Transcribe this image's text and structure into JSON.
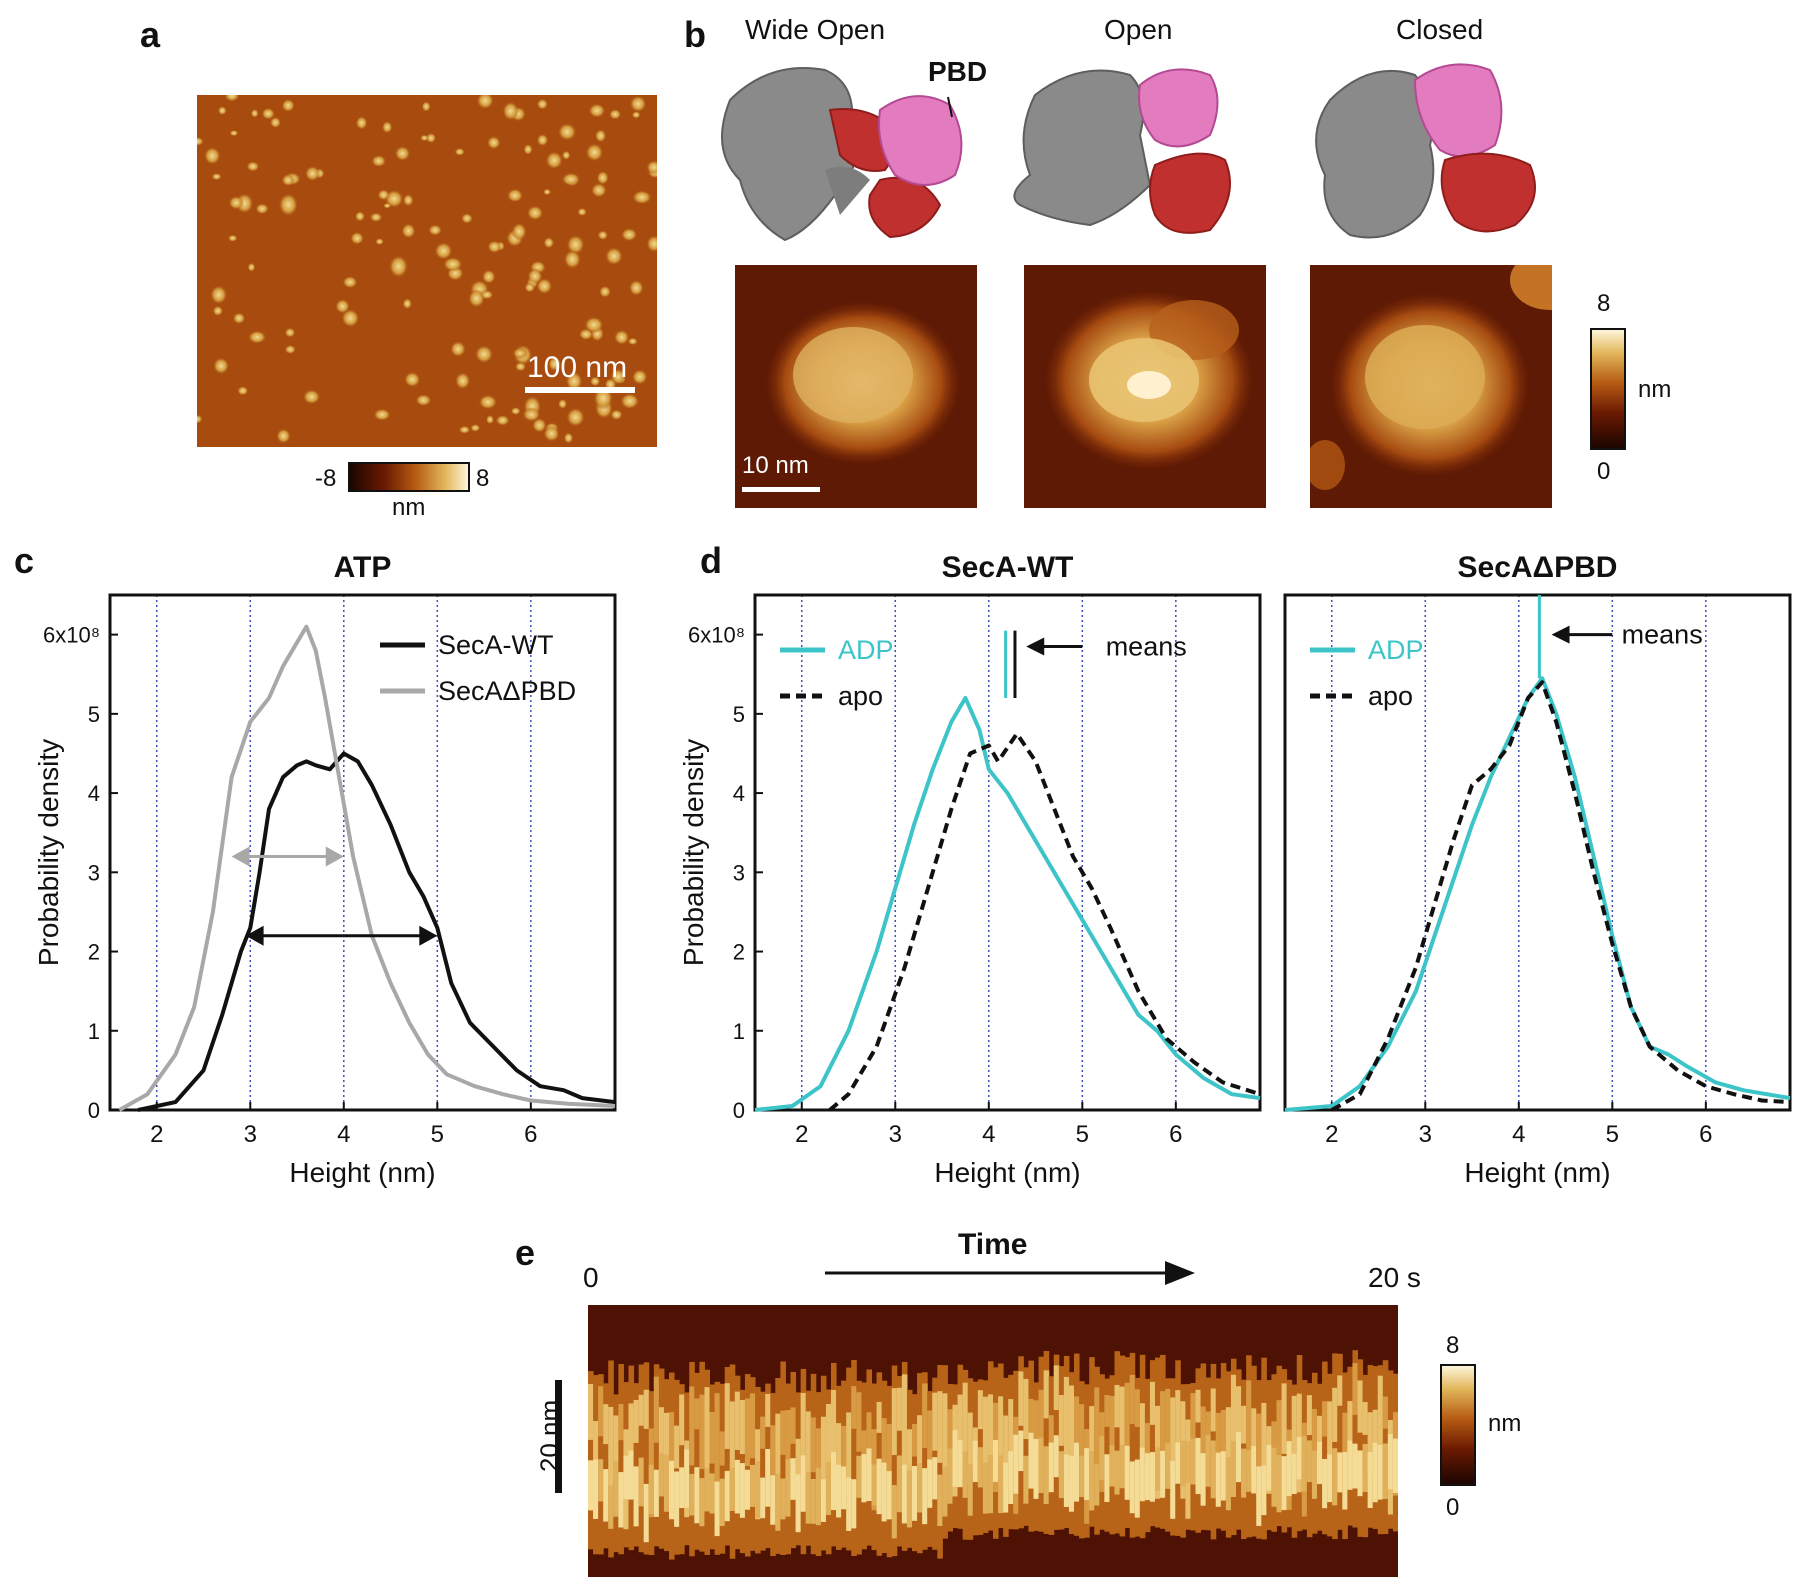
{
  "panels": {
    "a": {
      "label": "a",
      "scale_bar": "100 nm",
      "colorbar": {
        "min": "-8",
        "max": "8",
        "unit": "nm"
      }
    },
    "b": {
      "label": "b",
      "states": [
        "Wide Open",
        "Open",
        "Closed"
      ],
      "pbd_label": "PBD",
      "scale_bar": "10 nm",
      "colorbar": {
        "min": "0",
        "max": "8",
        "unit": "nm"
      }
    },
    "c": {
      "label": "c"
    },
    "d": {
      "label": "d"
    },
    "e": {
      "label": "e",
      "time_label": "Time",
      "t_start": "0",
      "t_end": "20 s",
      "scale_bar": "20 nm",
      "colorbar": {
        "min": "0",
        "max": "8",
        "unit": "nm"
      }
    }
  },
  "colors": {
    "cyan": "#3cc4c8",
    "gray": "#a8a8a8",
    "black": "#111111"
  },
  "chart_data": [
    {
      "id": "c",
      "type": "line",
      "title": "ATP",
      "xlabel": "Height (nm)",
      "ylabel": "Probability density",
      "xlim": [
        1.5,
        6.9
      ],
      "ylim": [
        0,
        6.5
      ],
      "xticks": [
        "2",
        "3",
        "4",
        "5",
        "6"
      ],
      "yticks": [
        "0",
        "1",
        "2",
        "3",
        "4",
        "5",
        "6x10⁸"
      ],
      "grid": "dotted vertical",
      "legend": "top-right",
      "series": [
        {
          "name": "SecA-WT",
          "color": "#111111",
          "x": [
            1.8,
            2.2,
            2.5,
            2.7,
            2.9,
            3.0,
            3.1,
            3.2,
            3.35,
            3.5,
            3.6,
            3.7,
            3.85,
            4.0,
            4.15,
            4.3,
            4.5,
            4.7,
            4.85,
            5.0,
            5.15,
            5.35,
            5.6,
            5.85,
            6.1,
            6.35,
            6.55,
            6.9
          ],
          "y": [
            0,
            0.1,
            0.5,
            1.2,
            2.0,
            2.3,
            3.0,
            3.8,
            4.2,
            4.35,
            4.4,
            4.35,
            4.3,
            4.5,
            4.4,
            4.1,
            3.6,
            3.0,
            2.7,
            2.3,
            1.6,
            1.1,
            0.8,
            0.5,
            0.3,
            0.25,
            0.15,
            0.1
          ]
        },
        {
          "name": "SecAΔPBD",
          "color": "#a8a8a8",
          "x": [
            1.6,
            1.9,
            2.2,
            2.4,
            2.6,
            2.8,
            3.0,
            3.2,
            3.35,
            3.5,
            3.6,
            3.7,
            3.8,
            3.95,
            4.1,
            4.3,
            4.5,
            4.7,
            4.9,
            5.1,
            5.4,
            5.7,
            6.0,
            6.4,
            6.9
          ],
          "y": [
            0,
            0.2,
            0.7,
            1.3,
            2.5,
            4.2,
            4.9,
            5.2,
            5.6,
            5.9,
            6.1,
            5.8,
            5.2,
            4.2,
            3.2,
            2.2,
            1.6,
            1.1,
            0.7,
            0.45,
            0.3,
            0.2,
            0.12,
            0.08,
            0.05
          ]
        }
      ],
      "annotations": [
        {
          "type": "double-arrow",
          "from": 2.8,
          "to": 4.0,
          "y": 3.2,
          "color": "#a8a8a8"
        },
        {
          "type": "double-arrow",
          "from": 2.95,
          "to": 5.0,
          "y": 2.2,
          "color": "#111111"
        }
      ]
    },
    {
      "id": "d1",
      "type": "line",
      "title": "SecA-WT",
      "xlabel": "Height (nm)",
      "ylabel": "Probability density",
      "xlim": [
        1.5,
        6.9
      ],
      "ylim": [
        0,
        6.5
      ],
      "xticks": [
        "2",
        "3",
        "4",
        "5",
        "6"
      ],
      "yticks": [
        "0",
        "1",
        "2",
        "3",
        "4",
        "5",
        "6x10⁸"
      ],
      "grid": "dotted vertical",
      "legend": "top-left",
      "means_label": "means",
      "means": [
        4.18,
        4.28
      ],
      "series": [
        {
          "name": "ADP",
          "color": "#3cc4c8",
          "x": [
            1.5,
            1.9,
            2.2,
            2.5,
            2.8,
            3.0,
            3.2,
            3.4,
            3.6,
            3.75,
            3.9,
            4.0,
            4.2,
            4.4,
            4.6,
            4.8,
            5.0,
            5.2,
            5.4,
            5.6,
            5.8,
            6.0,
            6.3,
            6.6,
            6.9
          ],
          "y": [
            0,
            0.05,
            0.3,
            1.0,
            2.0,
            2.8,
            3.6,
            4.3,
            4.9,
            5.2,
            4.8,
            4.3,
            4.0,
            3.6,
            3.2,
            2.8,
            2.4,
            2.0,
            1.6,
            1.2,
            1.0,
            0.7,
            0.4,
            0.2,
            0.15
          ]
        },
        {
          "name": "apo",
          "color": "#111111",
          "dash": true,
          "x": [
            2.3,
            2.5,
            2.8,
            3.1,
            3.4,
            3.6,
            3.8,
            4.0,
            4.1,
            4.3,
            4.5,
            4.7,
            4.9,
            5.1,
            5.3,
            5.6,
            5.9,
            6.2,
            6.5,
            6.9
          ],
          "y": [
            0,
            0.2,
            0.8,
            1.8,
            3.0,
            3.8,
            4.5,
            4.6,
            4.4,
            4.75,
            4.4,
            3.8,
            3.2,
            2.8,
            2.3,
            1.5,
            0.9,
            0.6,
            0.35,
            0.2
          ]
        }
      ]
    },
    {
      "id": "d2",
      "type": "line",
      "title": "SecAΔPBD",
      "xlabel": "Height (nm)",
      "ylabel": "",
      "xlim": [
        1.5,
        6.9
      ],
      "ylim": [
        0,
        6.5
      ],
      "xticks": [
        "2",
        "3",
        "4",
        "5",
        "6"
      ],
      "yticks": [],
      "grid": "dotted vertical",
      "legend": "top-left",
      "means_label": "means",
      "means": [
        4.22
      ],
      "series": [
        {
          "name": "ADP",
          "color": "#3cc4c8",
          "x": [
            1.5,
            2.0,
            2.3,
            2.6,
            2.9,
            3.1,
            3.3,
            3.5,
            3.7,
            3.9,
            4.1,
            4.25,
            4.4,
            4.6,
            4.8,
            5.0,
            5.2,
            5.4,
            5.6,
            5.8,
            6.1,
            6.4,
            6.9
          ],
          "y": [
            0,
            0.05,
            0.3,
            0.8,
            1.5,
            2.2,
            2.9,
            3.6,
            4.2,
            4.7,
            5.2,
            5.45,
            5.0,
            4.2,
            3.2,
            2.2,
            1.3,
            0.8,
            0.7,
            0.55,
            0.35,
            0.25,
            0.15
          ]
        },
        {
          "name": "apo",
          "color": "#111111",
          "dash": true,
          "x": [
            2.0,
            2.3,
            2.6,
            2.9,
            3.1,
            3.3,
            3.5,
            3.7,
            3.9,
            4.1,
            4.25,
            4.4,
            4.6,
            4.8,
            5.0,
            5.2,
            5.4,
            5.7,
            6.0,
            6.3,
            6.6,
            6.9
          ],
          "y": [
            0,
            0.2,
            0.9,
            1.8,
            2.6,
            3.4,
            4.1,
            4.3,
            4.6,
            5.2,
            5.4,
            4.9,
            4.0,
            3.0,
            2.1,
            1.3,
            0.8,
            0.5,
            0.3,
            0.2,
            0.12,
            0.1
          ]
        }
      ]
    }
  ]
}
